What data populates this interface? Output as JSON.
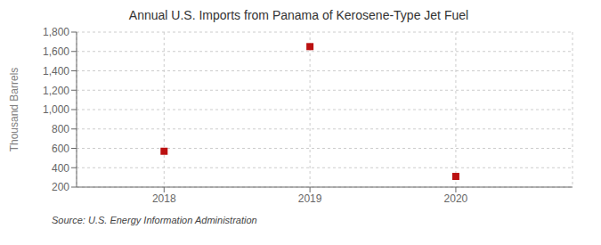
{
  "chart_data": {
    "type": "scatter",
    "title": "Annual U.S. Imports from Panama of Kerosene-Type Jet Fuel",
    "ylabel": "Thousand Barrels",
    "source": "Source: U.S. Energy Information Administration",
    "x": [
      2018,
      2019,
      2020
    ],
    "values": [
      570,
      1650,
      310
    ],
    "color": "#bb1111",
    "marker": "square",
    "xlim": [
      2017.4,
      2020.8
    ],
    "xticks": [
      2018,
      2019,
      2020
    ],
    "ylim": [
      200,
      1800
    ],
    "yticks": [
      200,
      400,
      600,
      800,
      {
        "value": 1000,
        "label": "1,000"
      },
      {
        "value": 1200,
        "label": "1,200"
      },
      {
        "value": 1400,
        "label": "1,400"
      },
      {
        "value": 1600,
        "label": "1,600"
      },
      {
        "value": 1800,
        "label": "1,800"
      }
    ],
    "grid": true
  }
}
